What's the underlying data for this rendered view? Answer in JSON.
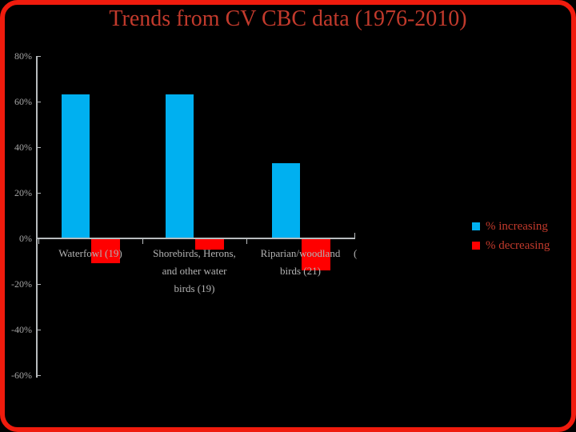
{
  "title": "Trends from CV CBC data (1976-2010)",
  "colors": {
    "background": "#000000",
    "frame_border": "#f01b0d",
    "title_text": "#c23a2c",
    "increase": "#00b0f0",
    "decrease": "#ff0000",
    "axis_line": "#b8bcbe",
    "axis_label": "#a6a6a6",
    "category_label": "#b3b3b3",
    "legend_text": "#c23a2c"
  },
  "chart_data": {
    "type": "bar",
    "title": "Trends from CV CBC data (1976-2010)",
    "categories": [
      "Waterfowl (19)",
      "Shorebirds, Herons, and other water birds (19)",
      "Riparian/woodland birds (21)"
    ],
    "category_label_lines": [
      [
        "Waterfowl (19)"
      ],
      [
        "Shorebirds, Herons,",
        "and other water",
        "birds (19)"
      ],
      [
        "Riparian/woodland",
        "birds (21)"
      ]
    ],
    "series": [
      {
        "name": "% increasing",
        "values": [
          63,
          63,
          33
        ]
      },
      {
        "name": "% decreasing",
        "values": [
          -11,
          -5,
          -14
        ]
      }
    ],
    "xlabel": "",
    "ylabel": "",
    "ylim": [
      -60,
      80
    ],
    "yticks": [
      {
        "value": 80,
        "label": "80%"
      },
      {
        "value": 60,
        "label": "60%"
      },
      {
        "value": 40,
        "label": "40%"
      },
      {
        "value": 20,
        "label": "20%"
      },
      {
        "value": 0,
        "label": "0%"
      },
      {
        "value": -20,
        "label": "-20%"
      },
      {
        "value": -40,
        "label": "-40%"
      },
      {
        "value": -60,
        "label": "-60%"
      }
    ],
    "grid": false,
    "legend_position": "right",
    "clipped_label_fragment": "("
  },
  "legend": {
    "items": [
      {
        "label": "% increasing",
        "series": "increase"
      },
      {
        "label": "% decreasing",
        "series": "decrease"
      }
    ]
  }
}
